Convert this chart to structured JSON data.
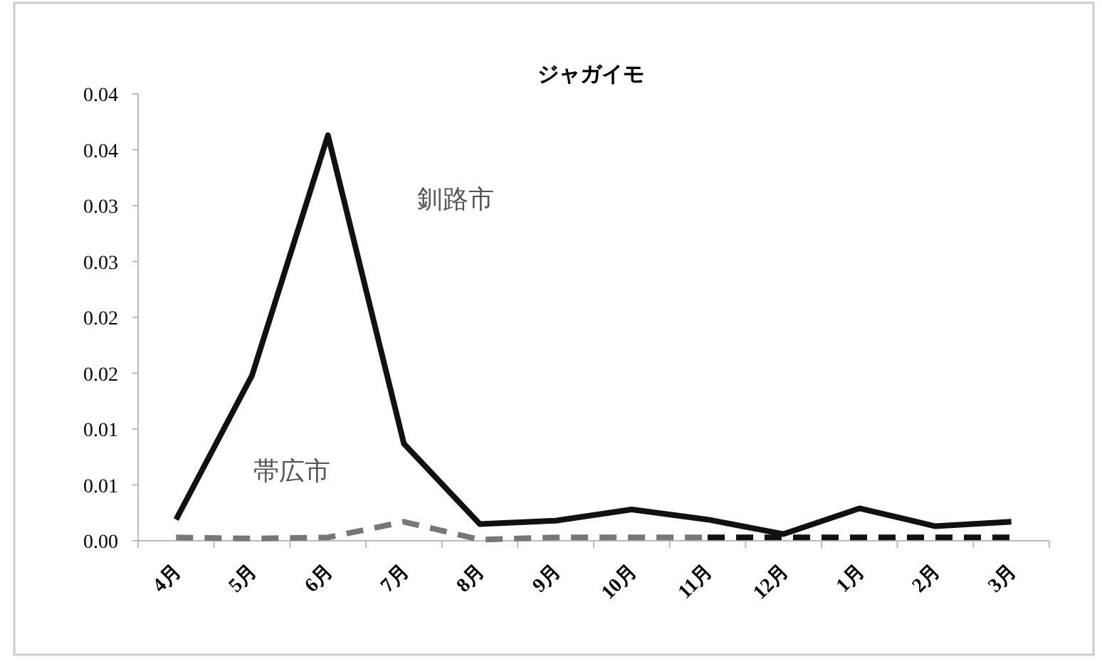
{
  "chart_data": {
    "type": "line",
    "title": "ジャガイモ",
    "categories": [
      "4月",
      "5月",
      "6月",
      "7月",
      "8月",
      "9月",
      "10月",
      "11月",
      "12月",
      "1月",
      "2月",
      "3月"
    ],
    "ylim": [
      0,
      0.04
    ],
    "yticks": [
      {
        "value": 0,
        "label": "0.00"
      },
      {
        "value": 0.005,
        "label": "0.01"
      },
      {
        "value": 0.01,
        "label": "0.01"
      },
      {
        "value": 0.015,
        "label": "0.02"
      },
      {
        "value": 0.02,
        "label": "0.02"
      },
      {
        "value": 0.025,
        "label": "0.03"
      },
      {
        "value": 0.03,
        "label": "0.03"
      },
      {
        "value": 0.035,
        "label": "0.04"
      },
      {
        "value": 0.04,
        "label": "0.04"
      }
    ],
    "grid": false,
    "annotations": [
      "釧路市",
      "帯広市"
    ],
    "series": [
      {
        "color": "#111111",
        "line_style": "solid",
        "values": [
          0.0019,
          0.0148,
          0.0363,
          0.0087,
          0.0015,
          0.0018,
          0.0028,
          0.0019,
          0.0006,
          0.0029,
          0.0013,
          0.0017
        ]
      },
      {
        "color": "#777777",
        "line_style": "dashed",
        "values": [
          0.0003,
          0.0002,
          0.0003,
          0.0017,
          0.0001,
          0.0003,
          0.0003,
          0.0003,
          null,
          null,
          null,
          null
        ]
      },
      {
        "color": "#111111",
        "line_style": "dashed",
        "values": [
          null,
          null,
          null,
          null,
          null,
          null,
          null,
          0.0003,
          0.0003,
          0.0003,
          0.0003,
          0.0003
        ]
      }
    ]
  }
}
